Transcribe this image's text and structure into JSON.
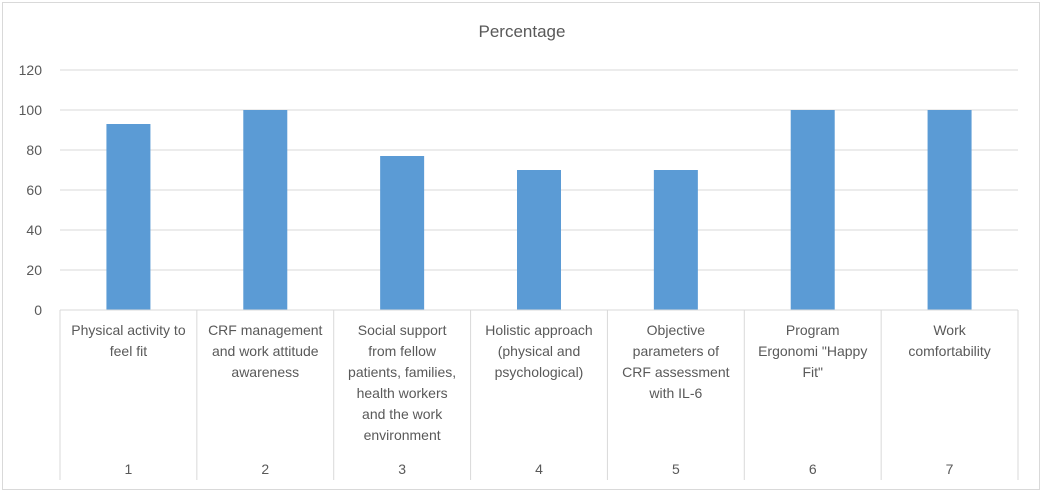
{
  "chart_data": {
    "type": "bar",
    "title": "Percentage",
    "categories": [
      "1",
      "2",
      "3",
      "4",
      "5",
      "6",
      "7"
    ],
    "category_descriptions": [
      "Physical activity to\nfeel fit",
      "CRF management\nand work attitude\nawareness",
      "Social support\nfrom fellow\npatients, families,\nhealth workers\nand the work\nenvironment",
      "Holistic approach\n(physical and\npsychological)",
      "Objective\nparameters of\nCRF assessment\nwith IL-6",
      "Program\nErgonomi \"Happy\nFit\"",
      "Work\ncomfortability"
    ],
    "values": [
      93,
      100,
      77,
      70,
      70,
      100,
      100
    ],
    "ylim": [
      0,
      120
    ],
    "yticks": [
      "0",
      "20",
      "40",
      "60",
      "80",
      "100",
      "120"
    ],
    "grid": true,
    "legend": "none",
    "bar_color": "#5b9bd5",
    "grid_color": "#d9d9d9"
  }
}
